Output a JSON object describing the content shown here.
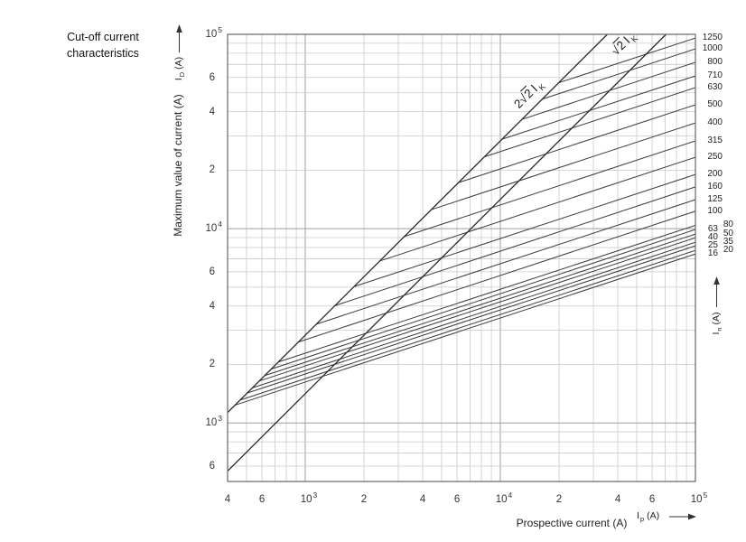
{
  "chart_data": {
    "type": "line",
    "title_lines": [
      "Cut-off current",
      "characteristics"
    ],
    "xlabel": "Prospective current (A)",
    "ylabel": "Maximum value of current (A)",
    "xscale": "log",
    "yscale": "log",
    "xlim": [
      400,
      100000
    ],
    "ylim": [
      500,
      100000
    ],
    "grid": "full-log-minor",
    "symbols": {
      "y": {
        "base": "I",
        "sub": "D",
        "unit": "(A)"
      },
      "x": {
        "base": "I",
        "sub": "p",
        "unit": "(A)"
      },
      "right": {
        "base": "I",
        "sub": "n",
        "unit": "(A)"
      }
    },
    "x_ticks": [
      {
        "m": "4",
        "v": 400
      },
      {
        "m": "6",
        "v": 600
      },
      {
        "m": "10",
        "e": "3",
        "v": 1000
      },
      {
        "m": "2",
        "v": 2000
      },
      {
        "m": "4",
        "v": 4000
      },
      {
        "m": "6",
        "v": 6000
      },
      {
        "m": "10",
        "e": "4",
        "v": 10000
      },
      {
        "m": "2",
        "v": 20000
      },
      {
        "m": "4",
        "v": 40000
      },
      {
        "m": "6",
        "v": 60000
      },
      {
        "m": "10",
        "e": "5",
        "v": 100000
      }
    ],
    "y_ticks": [
      {
        "m": "10",
        "e": "5",
        "v": 100000
      },
      {
        "m": "6",
        "v": 60000
      },
      {
        "m": "4",
        "v": 40000
      },
      {
        "m": "2",
        "v": 20000
      },
      {
        "m": "10",
        "e": "4",
        "v": 10000
      },
      {
        "m": "6",
        "v": 6000
      },
      {
        "m": "4",
        "v": 4000
      },
      {
        "m": "2",
        "v": 2000
      },
      {
        "m": "10",
        "e": "3",
        "v": 1000
      },
      {
        "m": "6",
        "v": 600
      }
    ],
    "reference_lines": [
      {
        "name": "2√2·Ik",
        "factor": 2.8284,
        "parts": {
          "pre": "2",
          "rad": "2",
          "base": "I",
          "sub": "K"
        },
        "label_pos": {
          "x": 585,
          "y": 104
        }
      },
      {
        "name": "√2·Ik",
        "factor": 1.4142,
        "parts": {
          "pre": "",
          "rad": "2",
          "base": "I",
          "sub": "K"
        },
        "label_pos": {
          "x": 690,
          "y": 48
        }
      }
    ],
    "series": [
      {
        "label": "1250",
        "branch_x": 19900,
        "end_x": 100000,
        "end_y": 95700,
        "col": "main"
      },
      {
        "label": "1000",
        "branch_x": 16400,
        "end_x": 100000,
        "end_y": 84200,
        "col": "main"
      },
      {
        "label": "800",
        "branch_x": 12900,
        "end_x": 100000,
        "end_y": 71800,
        "col": "main"
      },
      {
        "label": "710",
        "branch_x": 10200,
        "end_x": 100000,
        "end_y": 61100,
        "col": "main"
      },
      {
        "label": "630",
        "branch_x": 8280,
        "end_x": 100000,
        "end_y": 53200,
        "col": "main"
      },
      {
        "label": "500",
        "branch_x": 6100,
        "end_x": 100000,
        "end_y": 43400,
        "col": "main"
      },
      {
        "label": "400",
        "branch_x": 4430,
        "end_x": 100000,
        "end_y": 35000,
        "col": "main"
      },
      {
        "label": "315",
        "branch_x": 3220,
        "end_x": 100000,
        "end_y": 28300,
        "col": "main"
      },
      {
        "label": "250",
        "branch_x": 2410,
        "end_x": 100000,
        "end_y": 23300,
        "col": "main"
      },
      {
        "label": "200",
        "branch_x": 1780,
        "end_x": 100000,
        "end_y": 19000,
        "col": "main"
      },
      {
        "label": "160",
        "branch_x": 1420,
        "end_x": 100000,
        "end_y": 16400,
        "col": "main"
      },
      {
        "label": "125",
        "branch_x": 1140,
        "end_x": 100000,
        "end_y": 14100,
        "col": "main"
      },
      {
        "label": "100",
        "branch_x": 923,
        "end_x": 100000,
        "end_y": 12300,
        "col": "main"
      },
      {
        "label": "80",
        "branch_x": 728,
        "end_x": 100000,
        "end_y": 10400,
        "col": "R"
      },
      {
        "label": "63",
        "branch_x": 670,
        "end_x": 100000,
        "end_y": 9900,
        "col": "L"
      },
      {
        "label": "50",
        "branch_x": 620,
        "end_x": 100000,
        "end_y": 9380,
        "col": "R"
      },
      {
        "label": "40",
        "branch_x": 581,
        "end_x": 100000,
        "end_y": 8980,
        "col": "L"
      },
      {
        "label": "35",
        "branch_x": 536,
        "end_x": 100000,
        "end_y": 8510,
        "col": "R"
      },
      {
        "label": "25",
        "branch_x": 504,
        "end_x": 100000,
        "end_y": 8160,
        "col": "L"
      },
      {
        "label": "20",
        "branch_x": 464,
        "end_x": 100000,
        "end_y": 7730,
        "col": "R"
      },
      {
        "label": "16",
        "branch_x": 437,
        "end_x": 100000,
        "end_y": 7410,
        "col": "L"
      }
    ]
  },
  "colors": {
    "curve": "#3a3a3a",
    "reference_line": "#2a2a2a",
    "grid_minor": "#cacaca",
    "grid_major": "#9e9e9e",
    "border": "#666666",
    "text": "#222222"
  }
}
